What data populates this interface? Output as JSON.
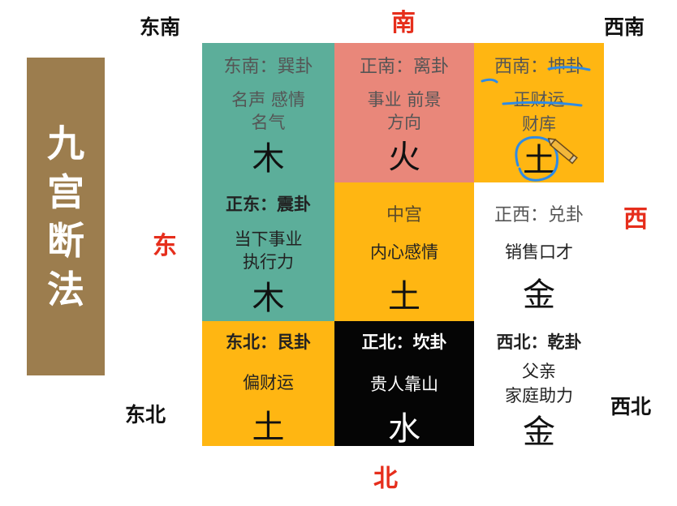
{
  "title": [
    "九",
    "宫",
    "断",
    "法"
  ],
  "directions": {
    "southeast": "东南",
    "south": "南",
    "southwest": "西南",
    "east": "东",
    "west": "西",
    "northeast": "东北",
    "north": "北",
    "northwest": "西北"
  },
  "colors": {
    "teal": "#5cae9a",
    "salmon": "#e9877a",
    "yellow": "#ffb612",
    "black": "#050505",
    "white": "#ffffff",
    "title_bg": "#9c7d4e",
    "red_label": "#e62e1c",
    "annotation": "#2e8be6"
  },
  "cells": {
    "se": {
      "header": "东南：巽卦",
      "line1": "名声  感情",
      "line2": "名气",
      "element": "木"
    },
    "s": {
      "header": "正南：离卦",
      "line1": "事业  前景",
      "line2": "方向",
      "element": "火"
    },
    "sw": {
      "header": "西南：坤卦",
      "line1": "正财运",
      "line2": "财库",
      "element": "土"
    },
    "e": {
      "header": "正东：震卦",
      "line1": "当下事业",
      "line2": "执行力",
      "element": "木"
    },
    "c": {
      "header": "中宫",
      "line1": "内心感情",
      "element": "土"
    },
    "w": {
      "header": "正西：兑卦",
      "line1": "销售口才",
      "element": "金"
    },
    "ne": {
      "header": "东北：艮卦",
      "line1": "偏财运",
      "element": "土"
    },
    "n": {
      "header": "正北：坎卦",
      "line1": "贵人靠山",
      "element": "水"
    },
    "nw": {
      "header": "西北：乾卦",
      "line1": "父亲",
      "line2": "家庭助力",
      "element": "金"
    }
  },
  "annotation_icon": "pencil-icon"
}
